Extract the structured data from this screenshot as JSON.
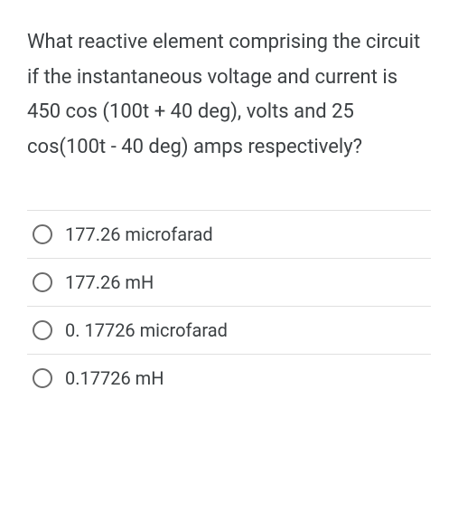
{
  "question": {
    "text": "What reactive element comprising the circuit if the instantaneous voltage and current is 450 cos (100t + 40 deg), volts and 25 cos(100t - 40 deg) amps respectively?",
    "text_color": "#3c4043",
    "font_size": 22
  },
  "options": [
    {
      "label": "177.26 microfarad",
      "selected": false
    },
    {
      "label": "177.26 mH",
      "selected": false
    },
    {
      "label": "0. 17726 microfarad",
      "selected": false
    },
    {
      "label": "0.17726 mH",
      "selected": false
    }
  ],
  "styling": {
    "background_color": "#ffffff",
    "divider_color": "#e0e0e0",
    "radio_border_color": "#6b6b6b",
    "option_font_size": 20,
    "option_text_color": "#3c4043"
  }
}
